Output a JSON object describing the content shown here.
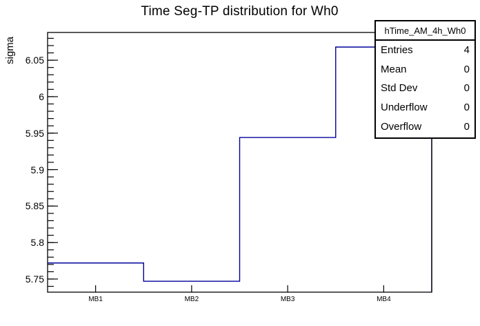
{
  "chart_data": {
    "type": "step-histogram",
    "title": "Time Seg-TP distribution for Wh0",
    "xlabel": "",
    "ylabel": "sigma",
    "categories": [
      "MB1",
      "MB2",
      "MB3",
      "MB4"
    ],
    "values": [
      5.772,
      5.747,
      5.944,
      6.068
    ],
    "ylim": [
      5.732,
      6.088
    ],
    "yticks": {
      "major": [
        5.75,
        5.8,
        5.85,
        5.9,
        5.95,
        6.0,
        6.05
      ],
      "major_labels": [
        "5.75",
        "5.8",
        "5.85",
        "5.9",
        "5.95",
        "6",
        "6.05"
      ],
      "minor_range": [
        5.74,
        6.08
      ],
      "minor_step": 0.01
    },
    "grid": false,
    "legend": "none",
    "line_color": "#000099",
    "frame_color": "#000000",
    "background_color": "#ffffff"
  },
  "stats_box": {
    "title": "hTime_AM_4h_Wh0",
    "rows": [
      {
        "label": "Entries",
        "value": "4"
      },
      {
        "label": "Mean",
        "value": "0"
      },
      {
        "label": "Std Dev",
        "value": "0"
      },
      {
        "label": "Underflow",
        "value": "0"
      },
      {
        "label": "Overflow",
        "value": "0"
      }
    ]
  }
}
